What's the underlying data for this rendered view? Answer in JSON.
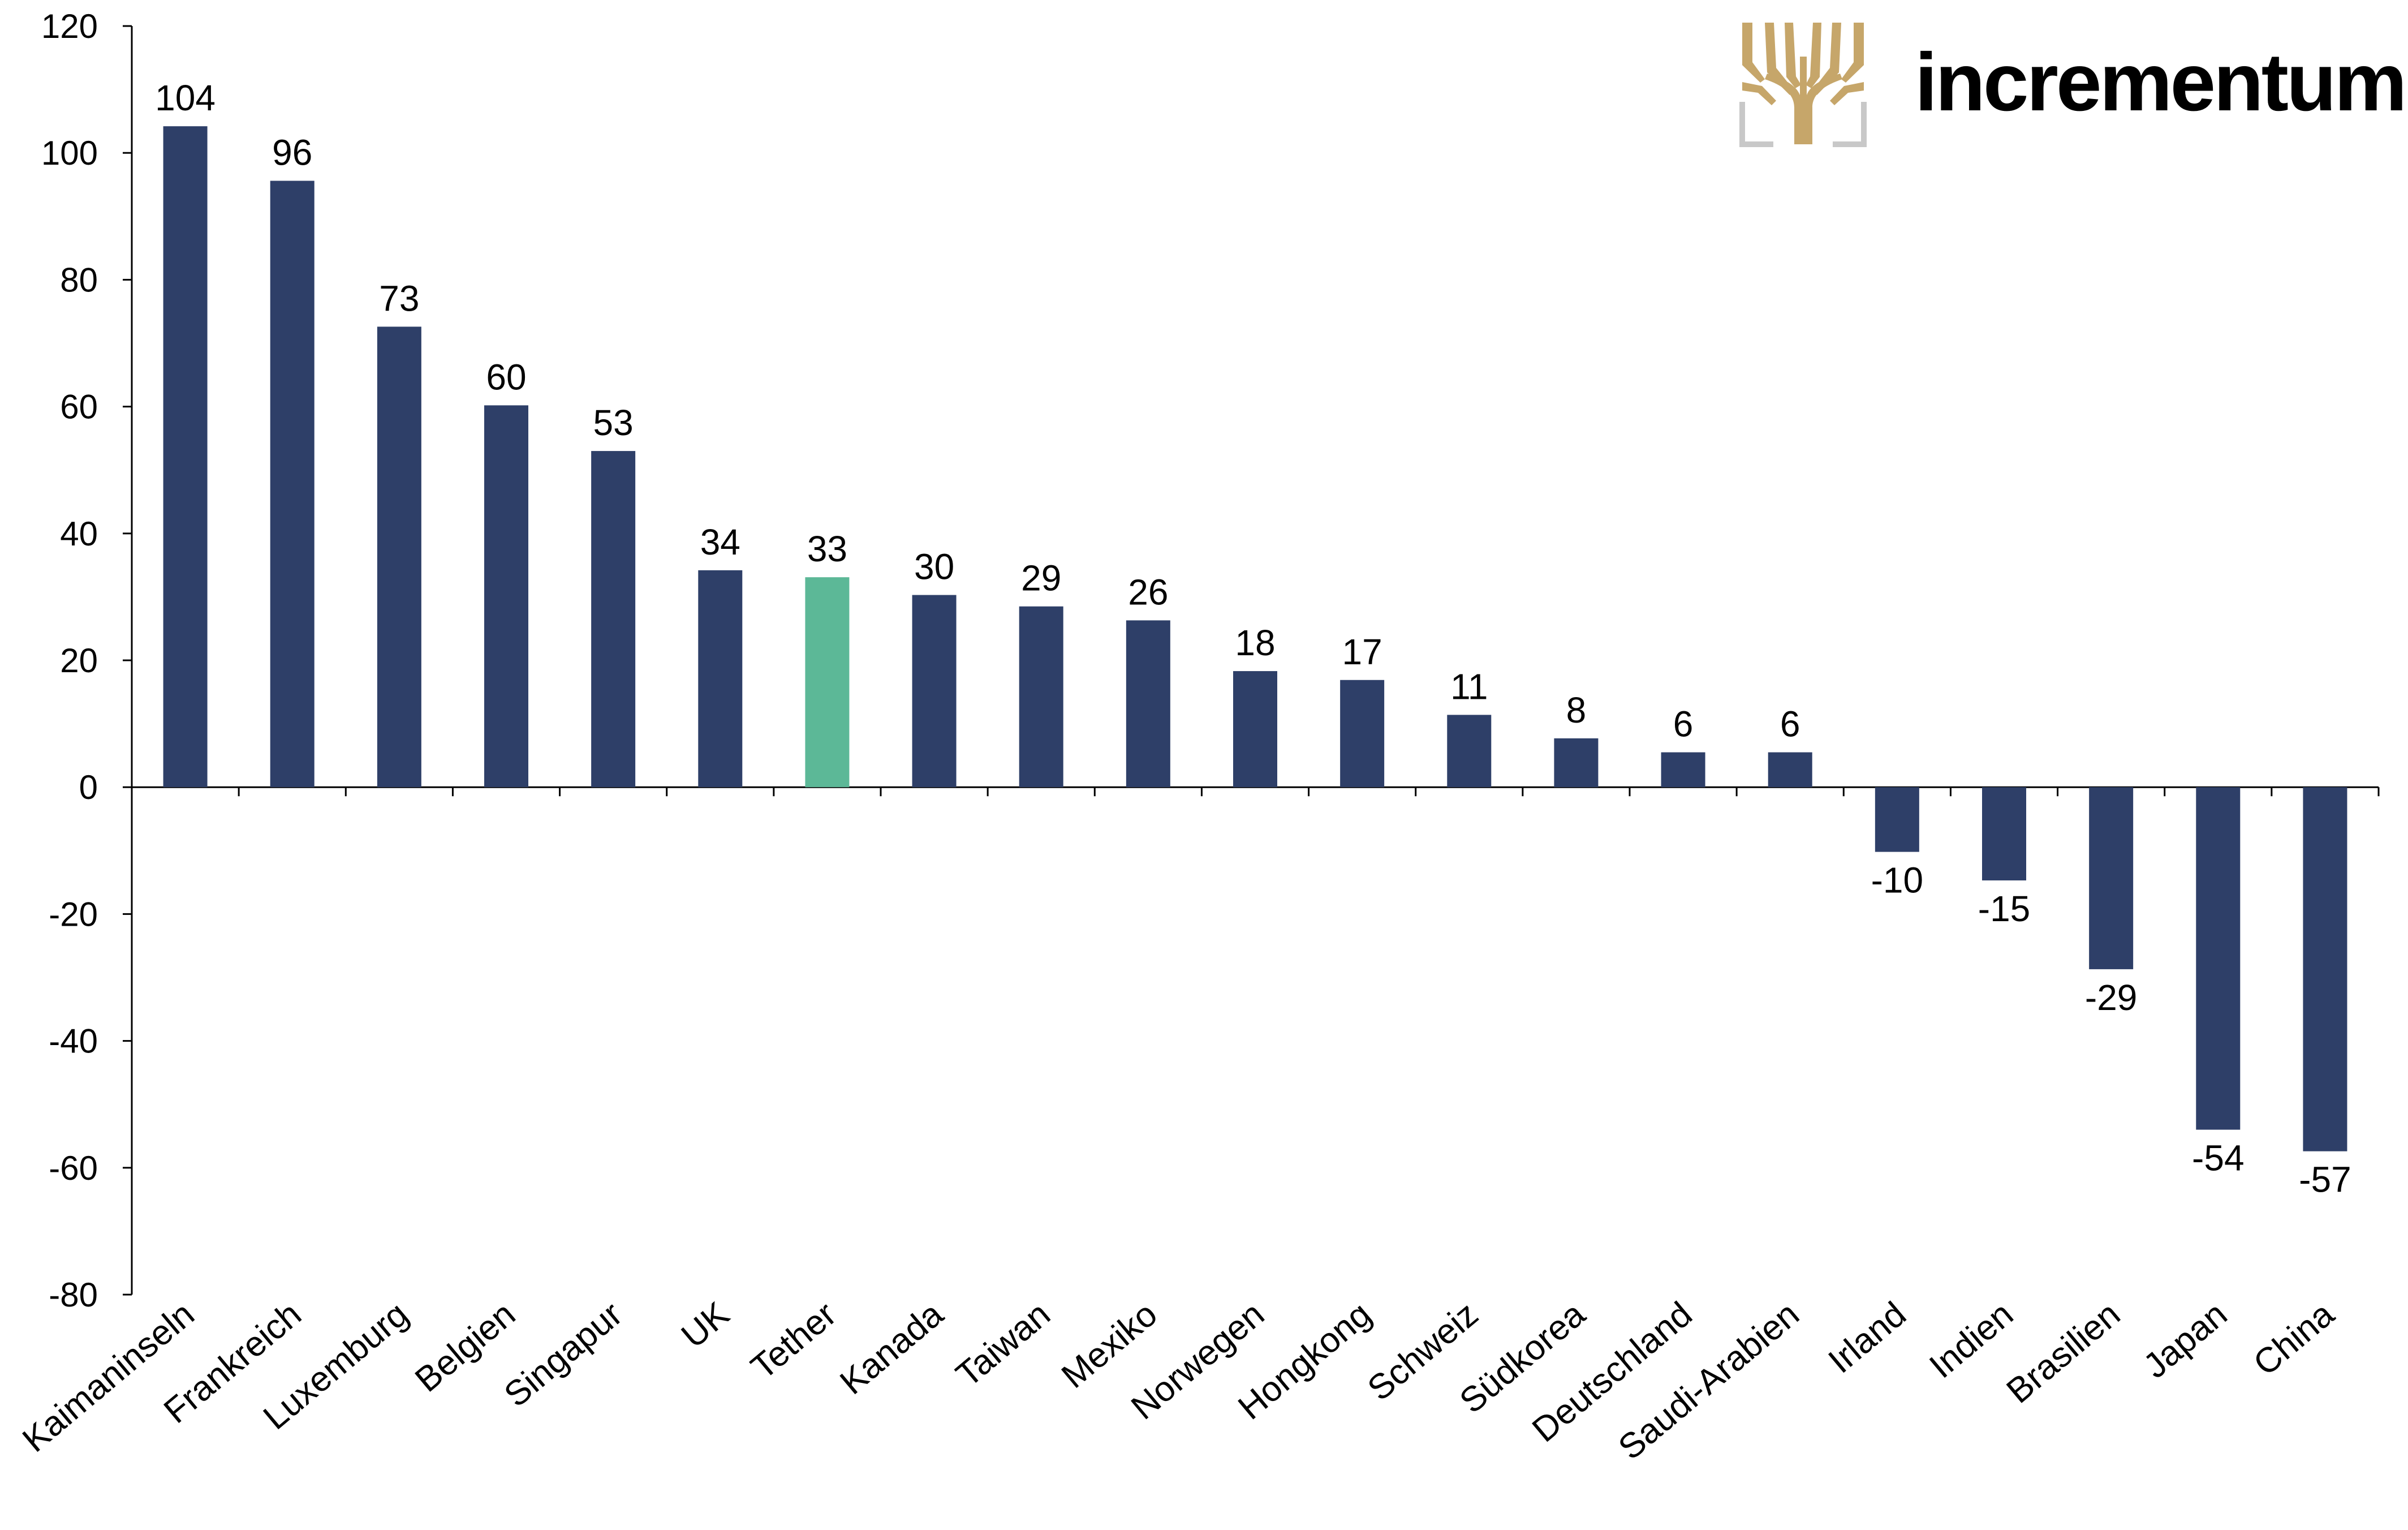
{
  "logo": {
    "wordmark": "incrementum",
    "wordmark_color": "#2e3d6a",
    "tree_color": "#c6a66a",
    "frame_color": "#c8c8c8"
  },
  "colors": {
    "bar": "#2e3f68",
    "highlight": "#5cb897"
  },
  "chart_data": {
    "type": "bar",
    "categories": [
      "Kaimaninseln",
      "Frankreich",
      "Luxemburg",
      "Belgien",
      "Singapur",
      "UK",
      "Tether",
      "Kanada",
      "Taiwan",
      "Mexiko",
      "Norwegen",
      "Hongkong",
      "Schweiz",
      "Südkorea",
      "Deutschland",
      "Saudi-Arabien",
      "Irland",
      "Indien",
      "Brasilien",
      "Japan",
      "China"
    ],
    "values": [
      104.2,
      95.6,
      72.6,
      60.2,
      53.0,
      34.2,
      33.1,
      30.3,
      28.5,
      26.3,
      18.3,
      16.9,
      11.4,
      7.7,
      5.5,
      5.5,
      -10.2,
      -14.7,
      -28.7,
      -54.0,
      -57.4
    ],
    "data_labels": [
      "104",
      "96",
      "73",
      "60",
      "53",
      "34",
      "33",
      "30",
      "29",
      "26",
      "18",
      "17",
      "11",
      "8",
      "6",
      "6",
      "-10",
      "-15",
      "-29",
      "-54",
      "-57"
    ],
    "highlight_category": "Tether",
    "yticks": [
      "120",
      "100",
      "80",
      "60",
      "40",
      "20",
      "0",
      "-20",
      "-40",
      "-60",
      "-80"
    ],
    "ylim": [
      -80,
      120
    ],
    "title": "",
    "xlabel": "",
    "ylabel": "",
    "grid": false,
    "legend": "none"
  }
}
